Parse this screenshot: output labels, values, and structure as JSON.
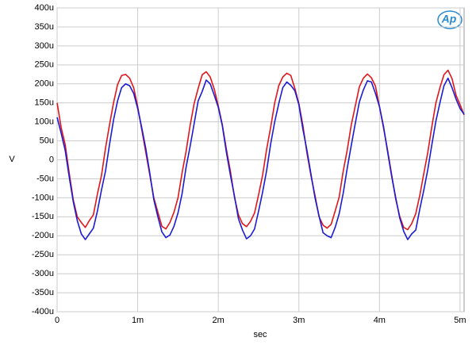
{
  "chart_data": {
    "type": "line",
    "logo": "Ap",
    "x_label": "sec",
    "y_label": "V",
    "grid": true,
    "xlim": [
      0,
      0.00505
    ],
    "ylim": [
      -0.0004,
      0.0004
    ],
    "xticks": [
      0,
      {
        "value": 0.001,
        "label": "1m"
      },
      {
        "value": 0.002,
        "label": "2m"
      },
      {
        "value": 0.003,
        "label": "3m"
      },
      {
        "value": 0.004,
        "label": "4m"
      },
      {
        "value": 0.005,
        "label": "5m"
      }
    ],
    "yticks": [
      {
        "value": -0.0004,
        "label": "-400u"
      },
      {
        "value": -0.00035,
        "label": "-350u"
      },
      {
        "value": -0.0003,
        "label": "-300u"
      },
      {
        "value": -0.00025,
        "label": "-250u"
      },
      {
        "value": -0.0002,
        "label": "-200u"
      },
      {
        "value": -0.00015,
        "label": "-150u"
      },
      {
        "value": -0.0001,
        "label": "-100u"
      },
      {
        "value": -5e-05,
        "label": "-50u"
      },
      0,
      {
        "value": 5e-05,
        "label": "50u"
      },
      {
        "value": 0.0001,
        "label": "100u"
      },
      {
        "value": 0.00015,
        "label": "150u"
      },
      {
        "value": 0.0002,
        "label": "200u"
      },
      {
        "value": 0.00025,
        "label": "250u"
      },
      {
        "value": 0.0003,
        "label": "300u"
      },
      {
        "value": 0.00035,
        "label": "350u"
      },
      {
        "value": 0.0004,
        "label": "400u"
      }
    ],
    "x": [
      0,
      5e-05,
      0.0001,
      0.00015,
      0.0002,
      0.00025,
      0.0003,
      0.00035,
      0.0004,
      0.00045,
      0.0005,
      0.00055,
      0.0006,
      0.00065,
      0.0007,
      0.00075,
      0.0008,
      0.00085,
      0.0009,
      0.00095,
      0.001,
      0.00105,
      0.0011,
      0.00115,
      0.0012,
      0.00125,
      0.0013,
      0.00135,
      0.0014,
      0.00145,
      0.0015,
      0.00155,
      0.0016,
      0.00165,
      0.0017,
      0.00175,
      0.0018,
      0.00185,
      0.0019,
      0.00195,
      0.002,
      0.00205,
      0.0021,
      0.00215,
      0.0022,
      0.00225,
      0.0023,
      0.00235,
      0.0024,
      0.00245,
      0.0025,
      0.00255,
      0.0026,
      0.00265,
      0.0027,
      0.00275,
      0.0028,
      0.00285,
      0.0029,
      0.00295,
      0.003,
      0.00305,
      0.0031,
      0.00315,
      0.0032,
      0.00325,
      0.0033,
      0.00335,
      0.0034,
      0.00345,
      0.0035,
      0.00355,
      0.0036,
      0.00365,
      0.0037,
      0.00375,
      0.0038,
      0.00385,
      0.0039,
      0.00395,
      0.004,
      0.00405,
      0.0041,
      0.00415,
      0.0042,
      0.00425,
      0.0043,
      0.00435,
      0.0044,
      0.00445,
      0.0045,
      0.00455,
      0.0046,
      0.00465,
      0.0047,
      0.00475,
      0.0048,
      0.00485,
      0.0049,
      0.00495,
      0.005,
      0.00505
    ],
    "series": [
      {
        "color": "#e0161b",
        "values": [
          0.00015,
          8.5e-05,
          4e-05,
          -3.5e-05,
          -0.000105,
          -0.00015,
          -0.000165,
          -0.000178,
          -0.00016,
          -0.000145,
          -9e-05,
          -4.2e-05,
          3e-05,
          9.2e-05,
          0.00015,
          0.000198,
          0.000222,
          0.000225,
          0.000215,
          0.00019,
          0.00014,
          8e-05,
          2e-05,
          -4e-05,
          -0.0001,
          -0.000138,
          -0.000175,
          -0.000182,
          -0.000165,
          -0.000138,
          -0.0001,
          -3.5e-05,
          2.2e-05,
          9e-05,
          0.000148,
          0.000188,
          0.000224,
          0.000232,
          0.000218,
          0.000186,
          0.000142,
          9.2e-05,
          2.8e-05,
          -3e-05,
          -9.8e-05,
          -0.000145,
          -0.000168,
          -0.000176,
          -0.000162,
          -0.00014,
          -9.2e-05,
          -4e-05,
          2.8e-05,
          8.6e-05,
          0.00015,
          0.000195,
          0.000218,
          0.000228,
          0.000222,
          0.000188,
          0.000148,
          9e-05,
          1.8e-05,
          -4.2e-05,
          -9.4e-05,
          -0.00015,
          -0.000172,
          -0.00018,
          -0.00017,
          -0.000135,
          -9.8e-05,
          -3e-05,
          2.6e-05,
          9.2e-05,
          0.000142,
          0.000192,
          0.000215,
          0.000226,
          0.000216,
          0.000194,
          0.00014,
          8.4e-05,
          2.6e-05,
          -3.8e-05,
          -0.000102,
          -0.000148,
          -0.000178,
          -0.000184,
          -0.000168,
          -0.000142,
          -9.4e-05,
          -3.6e-05,
          2e-05,
          8.8e-05,
          0.00015,
          0.00019,
          0.000224,
          0.000236,
          0.000214,
          0.00017,
          0.000145,
          0.000118
        ]
      },
      {
        "color": "#1b1bd6",
        "values": [
          0.000112,
          7e-05,
          2.5e-05,
          -4.5e-05,
          -0.00011,
          -0.00016,
          -0.000195,
          -0.00021,
          -0.000195,
          -0.00018,
          -0.000135,
          -8e-05,
          -3e-05,
          4e-05,
          0.000105,
          0.000155,
          0.00019,
          0.0002,
          0.000195,
          0.000175,
          0.000135,
          8.5e-05,
          3e-05,
          -3.5e-05,
          -0.000105,
          -0.00015,
          -0.00019,
          -0.000205,
          -0.000198,
          -0.000175,
          -0.00014,
          -9e-05,
          -2e-05,
          3.5e-05,
          9.5e-05,
          0.000155,
          0.00018,
          0.00021,
          0.0002,
          0.00017,
          0.000138,
          9e-05,
          2e-05,
          -4e-05,
          -9.5e-05,
          -0.000155,
          -0.000185,
          -0.000208,
          -0.0002,
          -0.000182,
          -0.000135,
          -8.5e-05,
          -2.8e-05,
          4.2e-05,
          0.0001,
          0.000148,
          0.00019,
          0.000205,
          0.000196,
          0.000182,
          0.000145,
          8e-05,
          2.5e-05,
          -3.8e-05,
          -0.0001,
          -0.000148,
          -0.000192,
          -0.0002,
          -0.000205,
          -0.000178,
          -0.000142,
          -8.8e-05,
          -2.2e-05,
          3.8e-05,
          9.6e-05,
          0.000152,
          0.000184,
          0.000208,
          0.000205,
          0.000175,
          0.00014,
          8.8e-05,
          2.2e-05,
          -4.2e-05,
          -9.8e-05,
          -0.000152,
          -0.000188,
          -0.00021,
          -0.000195,
          -0.000185,
          -0.00013,
          -8e-05,
          -2.5e-05,
          4e-05,
          0.000102,
          0.00015,
          0.000195,
          0.000215,
          0.00019,
          0.00016,
          0.000135,
          0.00012
        ]
      }
    ]
  }
}
